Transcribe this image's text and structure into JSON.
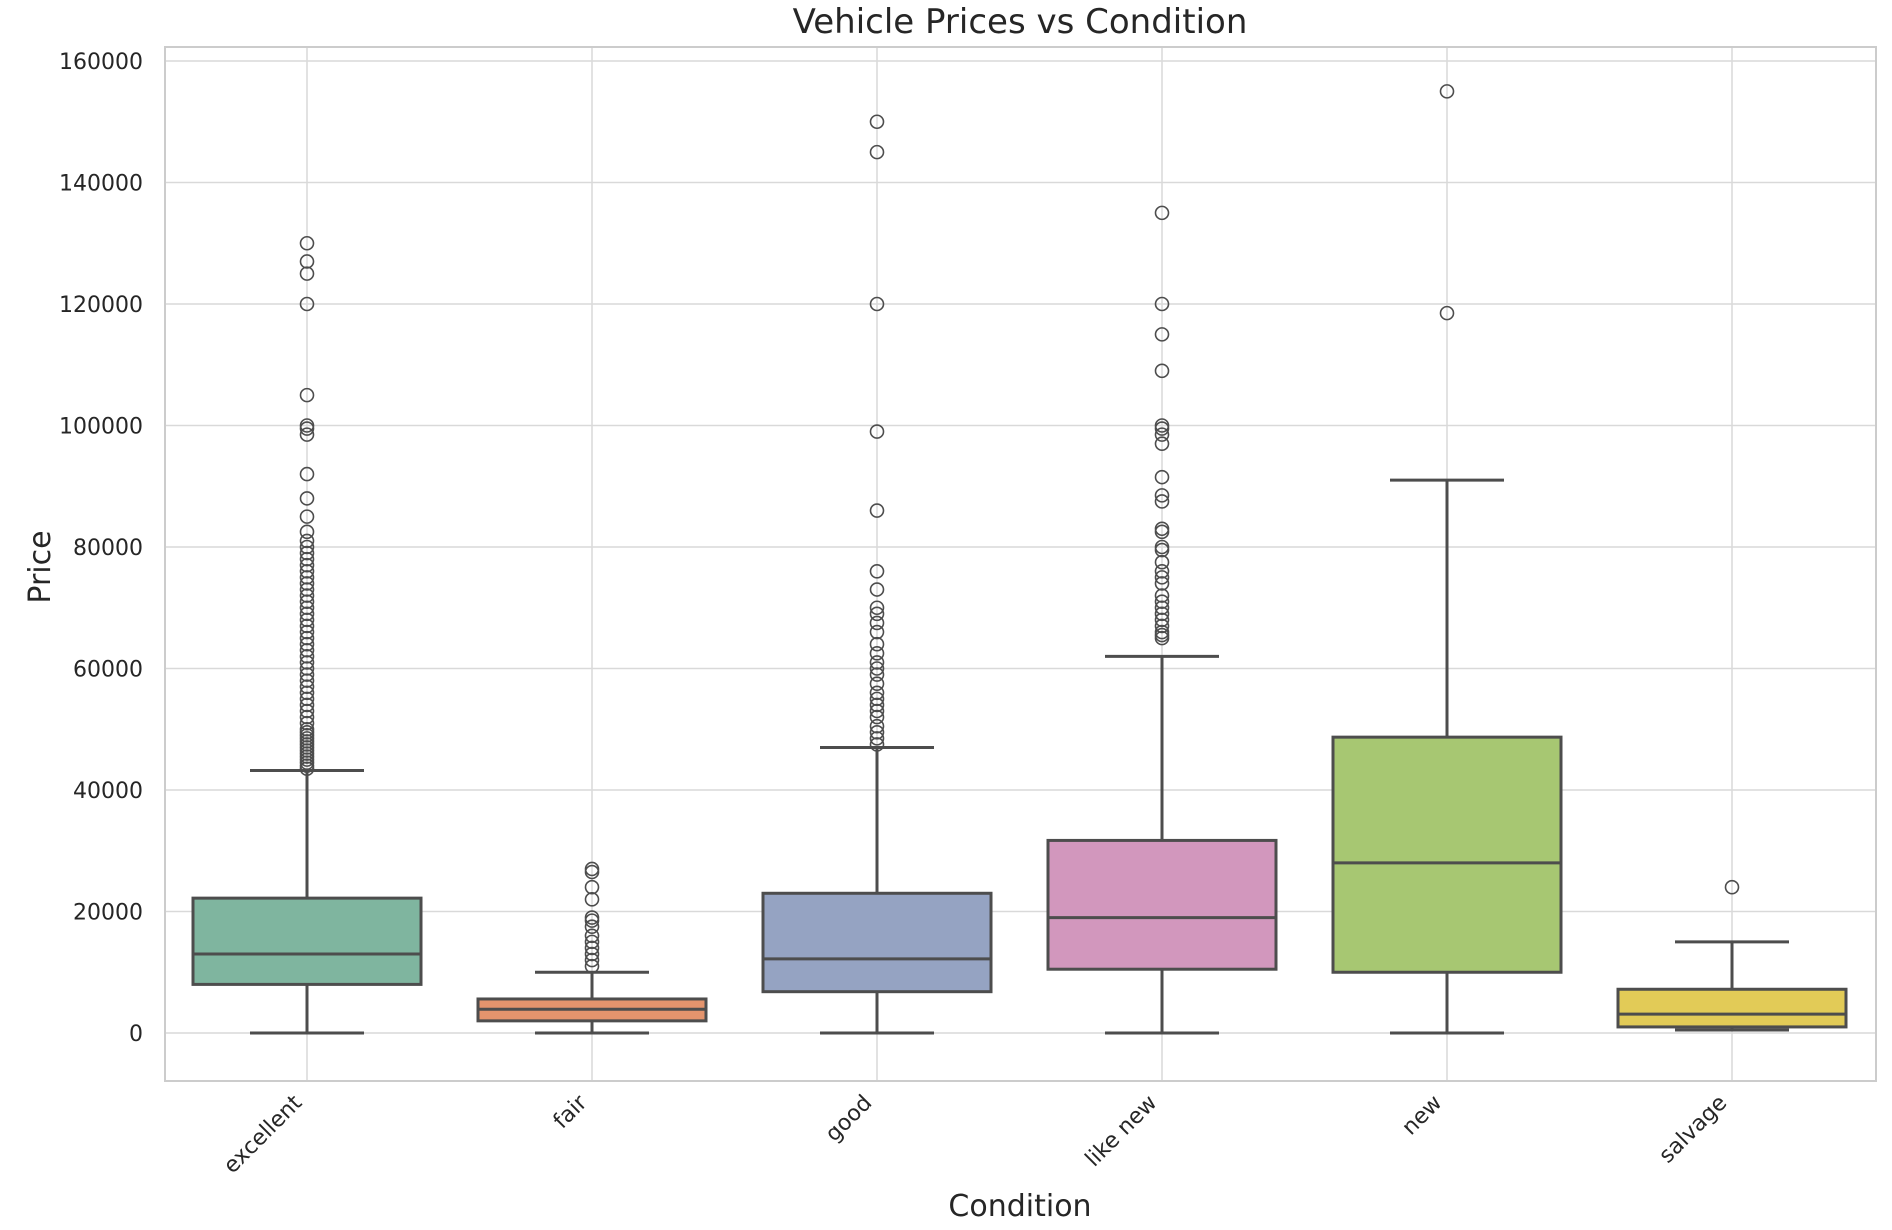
{
  "chart_data": {
    "type": "box",
    "title": "Vehicle Prices vs Condition",
    "xlabel": "Condition",
    "ylabel": "Price",
    "ylim": [
      -7500,
      162500
    ],
    "yticks": [
      0,
      20000,
      40000,
      60000,
      80000,
      100000,
      120000,
      140000,
      160000
    ],
    "grid": true,
    "legend": "none",
    "categories": [
      "excellent",
      "fair",
      "good",
      "like new",
      "new",
      "salvage"
    ],
    "boxes": [
      {
        "category": "excellent",
        "color": "#7fb59f",
        "whisker_low": 0,
        "q1": 8000,
        "median": 13000,
        "q3": 22200,
        "whisker_high": 43200,
        "outliers": [
          43500,
          44000,
          44500,
          45000,
          45500,
          46000,
          46500,
          47000,
          47500,
          48000,
          48500,
          49000,
          49500,
          50000,
          51000,
          52000,
          53000,
          54000,
          55000,
          56000,
          57000,
          58000,
          59000,
          60000,
          61000,
          62000,
          63000,
          64000,
          65000,
          66000,
          67000,
          68000,
          69000,
          70000,
          71000,
          72000,
          73000,
          74000,
          75000,
          76000,
          77000,
          78000,
          79000,
          80000,
          81000,
          82500,
          85000,
          88000,
          92000,
          98500,
          99500,
          100000,
          105000,
          120000,
          125000,
          127000,
          130000
        ]
      },
      {
        "category": "fair",
        "color": "#e4946d",
        "whisker_low": 0,
        "q1": 2000,
        "median": 3900,
        "q3": 5600,
        "whisker_high": 10000,
        "outliers": [
          11000,
          12000,
          13000,
          14000,
          15000,
          16000,
          17500,
          18500,
          19000,
          22000,
          24000,
          26500,
          27000
        ]
      },
      {
        "category": "good",
        "color": "#95a3c2",
        "whisker_low": 0,
        "q1": 6800,
        "median": 12200,
        "q3": 23000,
        "whisker_high": 47000,
        "outliers": [
          47500,
          48500,
          49500,
          50500,
          52000,
          53000,
          54000,
          55000,
          56000,
          57500,
          59000,
          60000,
          61000,
          62500,
          64000,
          66000,
          67500,
          69000,
          70000,
          73000,
          76000,
          86000,
          99000,
          120000,
          145000,
          150000
        ]
      },
      {
        "category": "like new",
        "color": "#d297bd",
        "whisker_low": 0,
        "q1": 10500,
        "median": 19000,
        "q3": 31700,
        "whisker_high": 62000,
        "outliers": [
          65000,
          65500,
          66000,
          67000,
          68000,
          69000,
          70000,
          71000,
          72000,
          74000,
          75000,
          76000,
          77500,
          79500,
          80000,
          82500,
          83000,
          87500,
          88500,
          91500,
          97000,
          98500,
          99500,
          100000,
          109000,
          115000,
          120000,
          135000
        ]
      },
      {
        "category": "new",
        "color": "#a7c772",
        "whisker_low": 0,
        "q1": 10000,
        "median": 28000,
        "q3": 48700,
        "whisker_high": 91000,
        "outliers": [
          118500,
          155000
        ]
      },
      {
        "category": "salvage",
        "color": "#e2cb57",
        "whisker_low": 500,
        "q1": 1000,
        "median": 3100,
        "q3": 7200,
        "whisker_high": 15000,
        "outliers": [
          24000
        ]
      }
    ]
  }
}
